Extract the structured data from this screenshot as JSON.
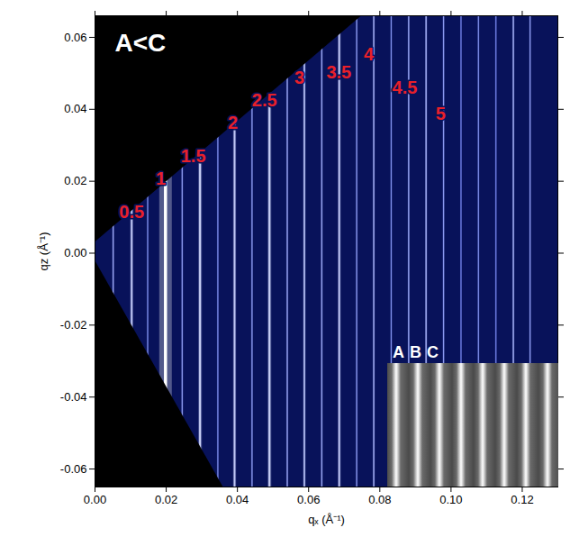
{
  "chart_data": {
    "type": "heatmap",
    "title": "A<C",
    "xlabel": "qₓ (Å⁻¹)",
    "ylabel": "qz (Å⁻¹)",
    "xlim": [
      0,
      0.13
    ],
    "ylim": [
      -0.065,
      0.066
    ],
    "xticks": [
      {
        "value": 0,
        "label": "0.00"
      },
      {
        "value": 0.02,
        "label": "0.02"
      },
      {
        "value": 0.04,
        "label": "0.04"
      },
      {
        "value": 0.06,
        "label": "0.06"
      },
      {
        "value": 0.08,
        "label": "0.08"
      },
      {
        "value": 0.1,
        "label": "0.10"
      },
      {
        "value": 0.12,
        "label": "0.12"
      }
    ],
    "yticks": [
      {
        "value": -0.06,
        "label": "-0.06"
      },
      {
        "value": -0.04,
        "label": "-0.04"
      },
      {
        "value": -0.02,
        "label": "-0.02"
      },
      {
        "value": 0,
        "label": "0.00"
      },
      {
        "value": 0.02,
        "label": "0.02"
      },
      {
        "value": 0.04,
        "label": "0.04"
      },
      {
        "value": 0.06,
        "label": "0.06"
      }
    ],
    "streaks": {
      "qx": [
        0.0051,
        0.0103,
        0.0148,
        0.0198,
        0.0245,
        0.0295,
        0.0345,
        0.0392,
        0.0441,
        0.049,
        0.054,
        0.0588,
        0.0637,
        0.0686,
        0.0735,
        0.0783,
        0.0832,
        0.0881,
        0.093,
        0.0979,
        0.1028,
        0.1077,
        0.1126,
        0.1175,
        0.1222
      ],
      "intensity": [
        0.5,
        0.7,
        0.4,
        1.0,
        0.45,
        0.75,
        0.4,
        0.7,
        0.45,
        0.75,
        0.5,
        0.65,
        0.5,
        0.7,
        0.45,
        0.55,
        0.4,
        0.5,
        0.55,
        0.45,
        0.35,
        0.4,
        0.35,
        0.55,
        0.45
      ]
    },
    "detector_edges": {
      "upper": [
        [
          0,
          0.003
        ],
        [
          0.075,
          0.066
        ]
      ],
      "lower": [
        [
          0,
          -0.002
        ],
        [
          0.036,
          -0.065
        ]
      ]
    },
    "annotations": [
      {
        "text": "0.5",
        "x": 0.0103,
        "y": 0.0113
      },
      {
        "text": "1",
        "x": 0.0185,
        "y": 0.0206
      },
      {
        "text": "1.5",
        "x": 0.0276,
        "y": 0.0269
      },
      {
        "text": "2",
        "x": 0.0387,
        "y": 0.0362
      },
      {
        "text": "2.5",
        "x": 0.0476,
        "y": 0.0424
      },
      {
        "text": "3",
        "x": 0.0574,
        "y": 0.0487
      },
      {
        "text": "3.5",
        "x": 0.0685,
        "y": 0.0502
      },
      {
        "text": "4",
        "x": 0.0769,
        "y": 0.0552
      },
      {
        "text": "4.5",
        "x": 0.087,
        "y": 0.0459
      },
      {
        "text": "5",
        "x": 0.0971,
        "y": 0.0387
      }
    ],
    "inset": {
      "labels": [
        "A",
        "B",
        "C"
      ]
    }
  }
}
